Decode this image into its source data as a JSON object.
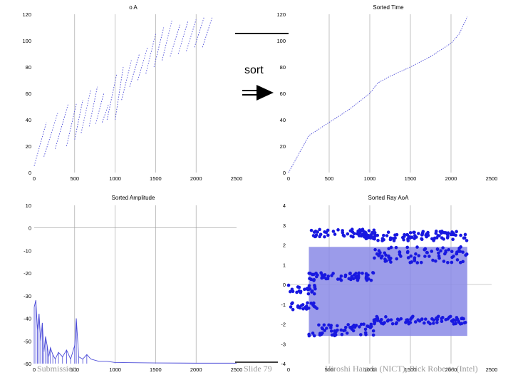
{
  "slide": {
    "sort_label": "sort",
    "footer_left": "Submission",
    "footer_center": "Slide 79",
    "footer_right": "Hiroshi Harada (NICT), Rick Roberts (Intel)"
  },
  "colors": {
    "data": "#4b4bd8",
    "fill": "#8a8ae6",
    "grid": "#9a9a9a",
    "points": "#1818e0"
  },
  "chart_data": [
    {
      "type": "scatter",
      "title": "o A",
      "xlim": [
        0,
        2500
      ],
      "ylim": [
        0,
        120
      ],
      "xticks": [
        "0",
        "500",
        "1000",
        "1500",
        "2000",
        "2500"
      ],
      "yticks": [
        "0",
        "20",
        "40",
        "60",
        "80",
        "100",
        "120"
      ],
      "series": [
        {
          "name": "",
          "segments": [
            [
              [
                0,
                5
              ],
              [
                150,
                38
              ]
            ],
            [
              [
                120,
                12
              ],
              [
                290,
                45
              ]
            ],
            [
              [
                260,
                18
              ],
              [
                420,
                52
              ]
            ],
            [
              [
                400,
                20
              ],
              [
                520,
                52
              ]
            ],
            [
              [
                500,
                25
              ],
              [
                600,
                55
              ]
            ],
            [
              [
                580,
                30
              ],
              [
                700,
                63
              ]
            ],
            [
              [
                680,
                35
              ],
              [
                780,
                65
              ]
            ],
            [
              [
                760,
                37
              ],
              [
                860,
                60
              ]
            ],
            [
              [
                840,
                38
              ],
              [
                920,
                52
              ]
            ],
            [
              [
                900,
                40
              ],
              [
                1020,
                75
              ]
            ],
            [
              [
                1000,
                40
              ],
              [
                1100,
                80
              ]
            ],
            [
              [
                1080,
                55
              ],
              [
                1200,
                85
              ]
            ],
            [
              [
                1180,
                65
              ],
              [
                1300,
                90
              ]
            ],
            [
              [
                1280,
                70
              ],
              [
                1400,
                95
              ]
            ],
            [
              [
                1380,
                75
              ],
              [
                1500,
                105
              ]
            ],
            [
              [
                1480,
                80
              ],
              [
                1600,
                110
              ]
            ],
            [
              [
                1580,
                85
              ],
              [
                1700,
                115
              ]
            ],
            [
              [
                1680,
                88
              ],
              [
                1800,
                112
              ]
            ],
            [
              [
                1780,
                90
              ],
              [
                1900,
                115
              ]
            ],
            [
              [
                1880,
                92
              ],
              [
                2000,
                116
              ]
            ],
            [
              [
                1980,
                95
              ],
              [
                2100,
                118
              ]
            ],
            [
              [
                2080,
                95
              ],
              [
                2200,
                118
              ]
            ]
          ]
        }
      ]
    },
    {
      "type": "line",
      "title": "Sorted Time",
      "xlim": [
        0,
        2500
      ],
      "ylim": [
        0,
        120
      ],
      "xticks": [
        "0",
        "500",
        "1000",
        "1500",
        "2000",
        "2500"
      ],
      "yticks": [
        "0",
        "20",
        "40",
        "60",
        "80",
        "100",
        "120"
      ],
      "series": [
        {
          "name": "",
          "x": [
            0,
            250,
            500,
            750,
            1000,
            1100,
            1250,
            1500,
            1750,
            2000,
            2100,
            2200
          ],
          "y": [
            0,
            28,
            38,
            48,
            60,
            68,
            73,
            80,
            88,
            98,
            105,
            118
          ]
        }
      ]
    },
    {
      "type": "line",
      "title": "Sorted Amplitude",
      "xlim": [
        0,
        2500
      ],
      "ylim": [
        -60,
        10
      ],
      "xticks": [
        "0",
        "500",
        "1000",
        "1500",
        "2000",
        "2500"
      ],
      "yticks": [
        "10",
        "0",
        "-10",
        "-20",
        "-30",
        "-40",
        "-50",
        "-60"
      ],
      "series": [
        {
          "name": "",
          "x": [
            0,
            20,
            40,
            60,
            80,
            100,
            120,
            140,
            160,
            180,
            200,
            230,
            260,
            300,
            350,
            400,
            450,
            500,
            520,
            550,
            600,
            650,
            700,
            800,
            900,
            1000,
            1200,
            1500,
            2000,
            2500
          ],
          "y": [
            -35,
            -32,
            -45,
            -38,
            -50,
            -42,
            -55,
            -48,
            -52,
            -57,
            -53,
            -56,
            -58,
            -55,
            -57,
            -54,
            -58,
            -52,
            -40,
            -57,
            -58,
            -56,
            -58,
            -59,
            -59,
            -59.5,
            -59.6,
            -59.7,
            -59.8,
            -59.8
          ]
        }
      ]
    },
    {
      "type": "scatter",
      "title": "Sorted Ray AoA",
      "xlim": [
        0,
        2500
      ],
      "ylim": [
        -4,
        4
      ],
      "xticks": [
        "0",
        "500",
        "1000",
        "1500",
        "2000",
        "2500"
      ],
      "yticks": [
        "4",
        "3",
        "2",
        "1",
        "0",
        "-1",
        "-2",
        "-3",
        "-4"
      ],
      "series": [
        {
          "name": "",
          "bands": [
            {
              "x": [
                0,
                350
              ],
              "y": [
                0.0,
                -0.5
              ]
            },
            {
              "x": [
                0,
                350
              ],
              "y": [
                -0.9,
                -1.3
              ]
            },
            {
              "x": [
                250,
                1050
              ],
              "y": [
                0.6,
                0.2
              ]
            },
            {
              "x": [
                250,
                1050
              ],
              "y": [
                -2.0,
                -2.6
              ]
            },
            {
              "x": [
                280,
                1100
              ],
              "y": [
                2.8,
                2.4
              ]
            },
            {
              "x": [
                900,
                2200
              ],
              "y": [
                2.7,
                2.2
              ]
            },
            {
              "x": [
                1050,
                2200
              ],
              "y": [
                1.9,
                1.1
              ]
            },
            {
              "x": [
                1050,
                2200
              ],
              "y": [
                -1.6,
                -2.0
              ]
            }
          ]
        }
      ]
    }
  ]
}
